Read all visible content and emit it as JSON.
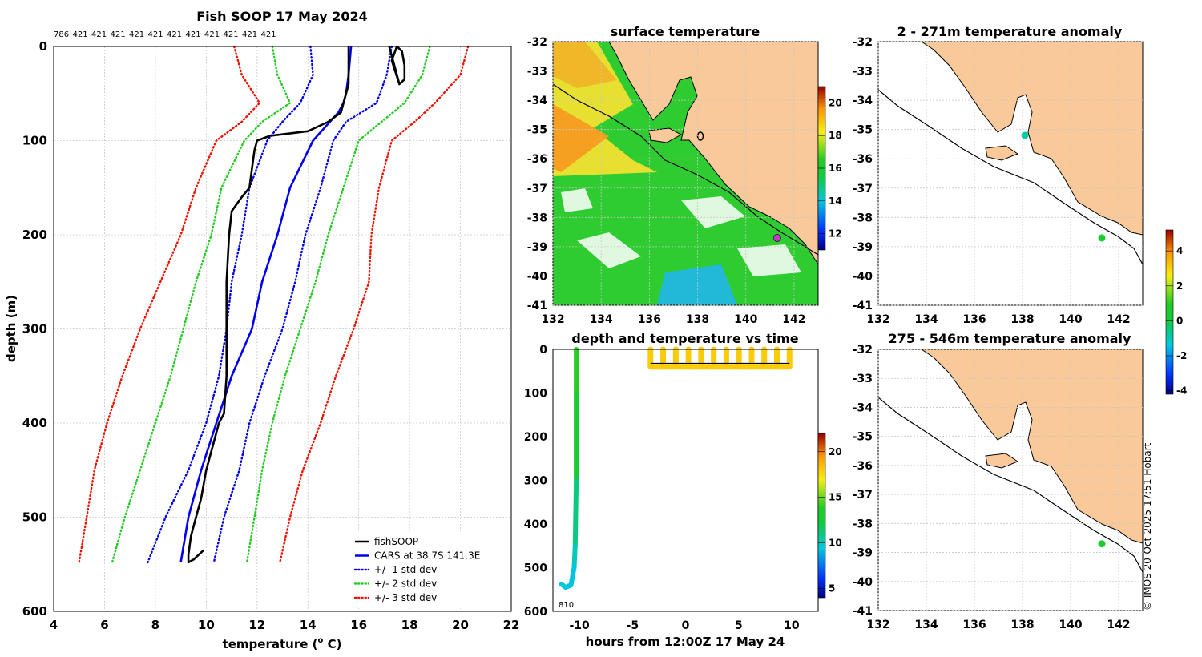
{
  "chart_data": [
    {
      "type": "line",
      "title": "Fish SOOP 17 May 2024",
      "xlabel": "temperature (",
      "xlabel_sup": "o",
      "xlabel_end": " C)",
      "ylabel": "depth (m)",
      "xlim": [
        4,
        22
      ],
      "ylim": [
        600,
        0
      ],
      "xticks": [
        4,
        6,
        8,
        10,
        12,
        14,
        16,
        18,
        20,
        22
      ],
      "yticks": [
        0,
        100,
        200,
        300,
        400,
        500,
        600
      ],
      "top_counts": [
        "786",
        "421",
        "421",
        "421",
        "421",
        "421",
        "421",
        "421",
        "421",
        "421",
        "421",
        "421"
      ],
      "legend": [
        {
          "label": "fishSOOP",
          "color": "#000000",
          "style": "solid"
        },
        {
          "label": "CARS at 38.7S 141.3E",
          "color": "#0000ee",
          "style": "solid"
        },
        {
          "label": "+/- 1 std dev",
          "color": "#0000ee",
          "style": "dotted"
        },
        {
          "label": "+/- 2 std dev",
          "color": "#22cc22",
          "style": "dotted"
        },
        {
          "label": "+/- 3 std dev",
          "color": "#ee1100",
          "style": "dotted"
        }
      ],
      "series": [
        {
          "name": "CARS",
          "color": "#0000ee",
          "style": "solid",
          "depth": [
            0,
            30,
            50,
            60,
            70,
            100,
            150,
            200,
            250,
            300,
            350,
            400,
            450,
            500,
            548
          ],
          "temp": [
            15.7,
            15.6,
            15.5,
            15.4,
            15.2,
            14.2,
            13.3,
            12.8,
            12.2,
            11.8,
            11.0,
            10.4,
            9.8,
            9.3,
            9.0
          ]
        },
        {
          "name": "+1 std",
          "color": "#0000ee",
          "style": "dotted",
          "depth": [
            0,
            30,
            60,
            80,
            100,
            150,
            200,
            250,
            300,
            350,
            400,
            450,
            500,
            548
          ],
          "temp": [
            14.1,
            14.2,
            13.7,
            13.0,
            12.4,
            11.7,
            11.4,
            11.0,
            10.8,
            10.5,
            10.0,
            9.3,
            8.4,
            7.7
          ]
        },
        {
          "name": "-1 std",
          "color": "#0000ee",
          "style": "dotted",
          "depth": [
            0,
            30,
            60,
            80,
            100,
            150,
            200,
            250,
            300,
            350,
            400,
            450,
            500,
            548
          ],
          "temp": [
            17.3,
            17.1,
            16.7,
            15.5,
            15.0,
            14.5,
            13.9,
            13.5,
            13.0,
            12.3,
            11.7,
            11.3,
            10.7,
            10.3
          ]
        },
        {
          "name": "+2 std",
          "color": "#22cc22",
          "style": "dotted",
          "depth": [
            0,
            30,
            60,
            80,
            100,
            150,
            200,
            250,
            300,
            350,
            400,
            450,
            500,
            548
          ],
          "temp": [
            12.6,
            12.8,
            13.3,
            12.2,
            11.5,
            10.6,
            10.2,
            9.6,
            9.1,
            8.6,
            8.0,
            7.4,
            6.8,
            6.3
          ]
        },
        {
          "name": "-2 std",
          "color": "#22cc22",
          "style": "dotted",
          "depth": [
            0,
            30,
            60,
            80,
            100,
            150,
            200,
            250,
            300,
            350,
            400,
            450,
            500,
            548
          ],
          "temp": [
            18.8,
            18.5,
            17.8,
            16.9,
            16.0,
            15.4,
            14.8,
            14.3,
            13.7,
            13.1,
            12.6,
            12.2,
            11.9,
            11.6
          ]
        },
        {
          "name": "+3 std",
          "color": "#ee1100",
          "style": "dotted",
          "depth": [
            0,
            30,
            60,
            80,
            100,
            150,
            200,
            250,
            300,
            350,
            400,
            450,
            500,
            548
          ],
          "temp": [
            11.1,
            11.4,
            12.1,
            11.4,
            10.4,
            9.6,
            9.0,
            8.2,
            7.4,
            6.7,
            6.1,
            5.6,
            5.3,
            5.0
          ]
        },
        {
          "name": "-3 std",
          "color": "#ee1100",
          "style": "dotted",
          "depth": [
            0,
            30,
            60,
            80,
            100,
            150,
            200,
            250,
            300,
            350,
            400,
            450,
            500,
            548
          ],
          "temp": [
            20.3,
            20.0,
            19.0,
            18.2,
            17.3,
            16.8,
            16.5,
            16.4,
            15.8,
            15.1,
            14.5,
            13.8,
            13.3,
            12.9
          ]
        },
        {
          "name": "fishSOOP",
          "color": "#000000",
          "style": "solid",
          "depth": [
            0,
            40,
            70,
            80,
            90,
            95,
            100,
            110,
            130,
            150,
            160,
            175,
            200,
            250,
            300,
            350,
            390,
            400,
            420,
            450,
            480,
            500,
            520,
            540,
            548,
            545,
            535
          ],
          "temp": [
            15.6,
            15.6,
            15.3,
            14.8,
            14.0,
            12.5,
            12.0,
            11.9,
            11.8,
            11.7,
            11.4,
            11.0,
            10.9,
            10.8,
            10.8,
            10.8,
            10.7,
            10.5,
            10.3,
            10.0,
            9.8,
            9.6,
            9.4,
            9.3,
            9.3,
            9.5,
            9.9
          ]
        },
        {
          "name": "fishSOOP surface cluster",
          "color": "#000000",
          "style": "solid",
          "depth": [
            0,
            10,
            20,
            30,
            40,
            35,
            20,
            5,
            0,
            15,
            40
          ],
          "temp": [
            17.2,
            17.3,
            17.4,
            17.5,
            17.6,
            17.8,
            17.8,
            17.7,
            17.5,
            17.3,
            17.6
          ]
        }
      ]
    },
    {
      "type": "heatmap",
      "title": "surface temperature",
      "xlim": [
        132,
        143
      ],
      "ylim": [
        -41,
        -32
      ],
      "xticks": [
        132,
        134,
        136,
        138,
        140,
        142
      ],
      "yticks": [
        -32,
        -33,
        -34,
        -35,
        -36,
        -37,
        -38,
        -39,
        -40,
        -41
      ],
      "colorbar": {
        "min": 11,
        "max": 21,
        "ticks": [
          12,
          14,
          16,
          18,
          20
        ]
      },
      "marker": {
        "lon": 141.3,
        "lat": -38.7,
        "color": "#cc33cc"
      }
    },
    {
      "type": "scatter",
      "title": "depth and temperature vs time",
      "xlabel": "hours from 12:00Z 17 May 24",
      "xlim": [
        -12.5,
        12.5
      ],
      "ylim": [
        600,
        0
      ],
      "xticks": [
        -10,
        -5,
        0,
        5,
        10
      ],
      "yticks": [
        0,
        100,
        200,
        300,
        400,
        500,
        600
      ],
      "annotation": "810",
      "colorbar": {
        "min": 4,
        "max": 22,
        "ticks": [
          5,
          10,
          15,
          20
        ]
      },
      "profile": {
        "hours": [
          -10.3,
          -10.3,
          -10.3,
          -10.4,
          -10.5,
          -10.8,
          -11.3,
          -11.7
        ],
        "depth": [
          0,
          100,
          300,
          450,
          500,
          540,
          545,
          538
        ],
        "temp": [
          18,
          14,
          13,
          11,
          10,
          9.3,
          9.3,
          9.5
        ]
      },
      "casts": {
        "start": -3.3,
        "end": 9.8,
        "count": 12,
        "max_depth": 40,
        "temp": 18
      }
    },
    {
      "type": "scatter",
      "title": "2 - 271m temperature anomaly",
      "xlim": [
        132,
        143
      ],
      "ylim": [
        -41,
        -32
      ],
      "xticks": [
        132,
        134,
        136,
        138,
        140,
        142
      ],
      "yticks": [
        -32,
        -33,
        -34,
        -35,
        -36,
        -37,
        -38,
        -39,
        -40,
        -41
      ],
      "points": [
        {
          "lon": 141.3,
          "lat": -38.7,
          "anomaly": 0.5
        },
        {
          "lon": 138.1,
          "lat": -35.2,
          "anomaly": -0.8
        }
      ],
      "colorbar": {
        "min": -4.2,
        "max": 5.2,
        "ticks": [
          -4,
          -2,
          0,
          2,
          4
        ]
      }
    },
    {
      "type": "scatter",
      "title": "275 - 546m temperature anomaly",
      "xlim": [
        132,
        143
      ],
      "ylim": [
        -41,
        -32
      ],
      "xticks": [
        132,
        134,
        136,
        138,
        140,
        142
      ],
      "yticks": [
        -32,
        -33,
        -34,
        -35,
        -36,
        -37,
        -38,
        -39,
        -40,
        -41
      ],
      "points": [
        {
          "lon": 141.3,
          "lat": -38.7,
          "anomaly": 0.6
        }
      ]
    }
  ],
  "footer": {
    "credit": "© IMOS 20-Oct-2025 17:51 Hobart"
  }
}
